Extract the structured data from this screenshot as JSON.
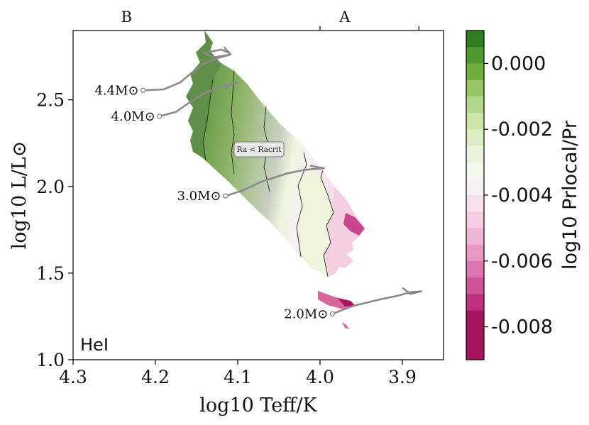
{
  "chart_data": {
    "type": "contour",
    "xlabel": "log10 Teff/K",
    "ylabel": "log10 L/L⊙",
    "xlim": [
      4.3,
      3.85
    ],
    "ylim": [
      1.0,
      2.9
    ],
    "x_ticks": [
      "4.3",
      "4.2",
      "4.1",
      "4.0",
      "3.9"
    ],
    "x_tick_values": [
      4.3,
      4.2,
      4.1,
      4.0,
      3.9
    ],
    "y_ticks": [
      "1.0",
      "1.5",
      "2.0",
      "2.5"
    ],
    "y_tick_values": [
      1.0,
      1.5,
      2.0,
      2.5
    ],
    "top_axis_labels": [
      {
        "label": "B",
        "x": 4.235
      },
      {
        "label": "A",
        "x": 3.97
      }
    ],
    "top_axis_ticks": [
      4.0,
      3.88
    ],
    "panel_label": "HeI",
    "annotation": "Ra < Racrit",
    "colorbar": {
      "label": "log10 Prlocal/Pr",
      "ticks": [
        "0.000",
        "-0.002",
        "-0.004",
        "-0.006",
        "-0.008"
      ],
      "tick_values": [
        0.0,
        -0.002,
        -0.004,
        -0.006,
        -0.008
      ],
      "range": [
        -0.009,
        0.001
      ],
      "levels": [
        {
          "from": 0.0005,
          "to": 0.001,
          "color": "#2e7d1f"
        },
        {
          "from": 0.0,
          "to": 0.0005,
          "color": "#4e9a2e"
        },
        {
          "from": -0.0005,
          "to": 0.0,
          "color": "#6eac3c"
        },
        {
          "from": -0.001,
          "to": -0.0005,
          "color": "#96c565"
        },
        {
          "from": -0.0015,
          "to": -0.001,
          "color": "#b4d78a"
        },
        {
          "from": -0.002,
          "to": -0.0015,
          "color": "#cde5a9"
        },
        {
          "from": -0.0025,
          "to": -0.002,
          "color": "#dcedc5"
        },
        {
          "from": -0.003,
          "to": -0.0025,
          "color": "#eaf4dd"
        },
        {
          "from": -0.0035,
          "to": -0.003,
          "color": "#f2f7ec"
        },
        {
          "from": -0.004,
          "to": -0.0035,
          "color": "#f7f0f4"
        },
        {
          "from": -0.0045,
          "to": -0.004,
          "color": "#f9e0ee"
        },
        {
          "from": -0.005,
          "to": -0.0045,
          "color": "#f6cde3"
        },
        {
          "from": -0.0055,
          "to": -0.005,
          "color": "#f0b6d6"
        },
        {
          "from": -0.006,
          "to": -0.0055,
          "color": "#e799c4"
        },
        {
          "from": -0.0065,
          "to": -0.006,
          "color": "#dc76b0"
        },
        {
          "from": -0.007,
          "to": -0.0065,
          "color": "#cf5197"
        },
        {
          "from": -0.0075,
          "to": -0.007,
          "color": "#c12f80"
        },
        {
          "from": -0.009,
          "to": -0.0075,
          "color": "#a6145f"
        }
      ]
    },
    "tracks": [
      {
        "label": "4.4M⊙",
        "points": [
          [
            4.215,
            2.555
          ],
          [
            4.19,
            2.56
          ],
          [
            4.17,
            2.6
          ],
          [
            4.155,
            2.66
          ],
          [
            4.14,
            2.71
          ],
          [
            4.125,
            2.74
          ],
          [
            4.11,
            2.76
          ],
          [
            4.13,
            2.745
          ],
          [
            4.142,
            2.77
          ],
          [
            4.12,
            2.79
          ],
          [
            4.11,
            2.77
          ],
          [
            4.116,
            2.8
          ],
          [
            4.108,
            2.76
          ]
        ]
      },
      {
        "label": "4.0M⊙",
        "points": [
          [
            4.195,
            2.405
          ],
          [
            4.175,
            2.43
          ],
          [
            4.16,
            2.48
          ],
          [
            4.14,
            2.54
          ],
          [
            4.12,
            2.575
          ],
          [
            4.1,
            2.6
          ],
          [
            4.11,
            2.59
          ],
          [
            4.115,
            2.56
          ]
        ]
      },
      {
        "label": "3.0M⊙",
        "points": [
          [
            4.115,
            1.945
          ],
          [
            4.095,
            1.975
          ],
          [
            4.07,
            2.03
          ],
          [
            4.04,
            2.075
          ],
          [
            4.02,
            2.095
          ],
          [
            4.01,
            2.1
          ],
          [
            3.995,
            2.105
          ],
          [
            4.002,
            2.11
          ],
          [
            4.012,
            2.12
          ]
        ]
      },
      {
        "label": "2.0M⊙",
        "points": [
          [
            3.985,
            1.265
          ],
          [
            3.96,
            1.31
          ],
          [
            3.93,
            1.345
          ],
          [
            3.905,
            1.37
          ],
          [
            3.89,
            1.39
          ],
          [
            3.877,
            1.395
          ],
          [
            3.89,
            1.38
          ],
          [
            3.9,
            1.415
          ]
        ]
      }
    ]
  }
}
